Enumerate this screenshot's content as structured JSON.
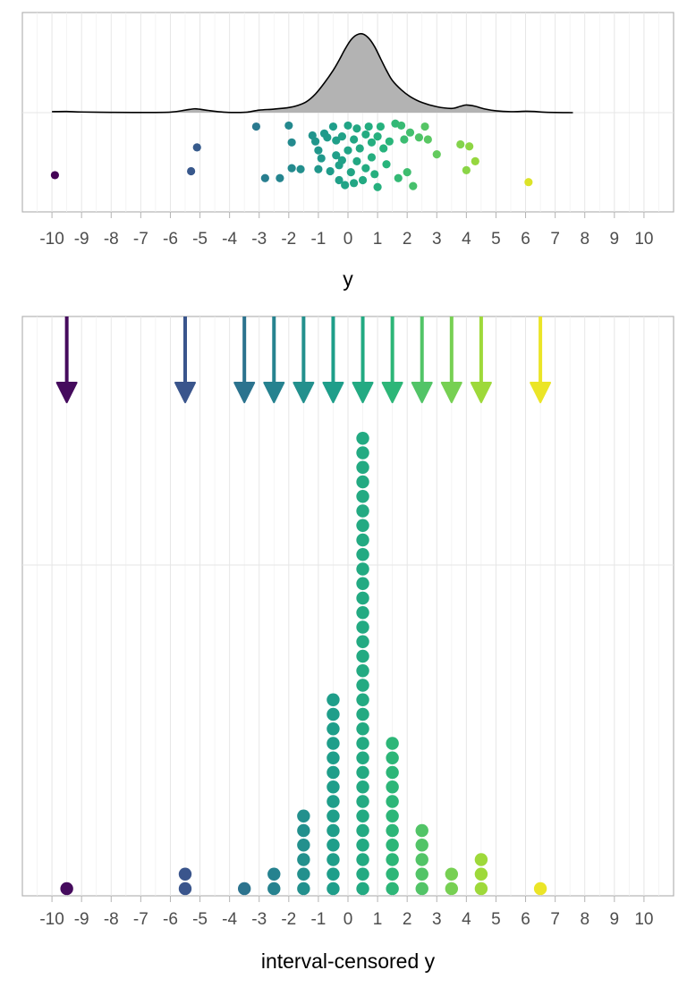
{
  "chart_data": [
    {
      "type": "scatter",
      "subtype": "density-with-jittered-points",
      "xlabel": "y",
      "ylabel": "",
      "xlim": [
        -11,
        11
      ],
      "x_ticks": [
        -10,
        -9,
        -8,
        -7,
        -6,
        -5,
        -4,
        -3,
        -2,
        -1,
        0,
        1,
        2,
        3,
        4,
        5,
        6,
        7,
        8,
        9,
        10
      ],
      "grid": true,
      "color_scale": "viridis",
      "density_curve": {
        "x": [
          -10,
          -9.5,
          -9,
          -8,
          -7,
          -6,
          -5.5,
          -5.2,
          -5,
          -4.7,
          -4.2,
          -3.8,
          -3.4,
          -3,
          -2.5,
          -2,
          -1.7,
          -1.4,
          -1.1,
          -0.8,
          -0.5,
          -0.3,
          -0.1,
          0.1,
          0.3,
          0.5,
          0.7,
          0.9,
          1.1,
          1.3,
          1.5,
          1.8,
          2.1,
          2.5,
          3,
          3.5,
          3.8,
          4,
          4.3,
          4.6,
          5,
          5.5,
          6,
          6.3,
          6.6,
          7,
          7.6
        ],
        "density": [
          0.012,
          0.014,
          0.008,
          0.003,
          0.002,
          0.006,
          0.03,
          0.045,
          0.04,
          0.025,
          0.006,
          0.002,
          0.006,
          0.03,
          0.042,
          0.06,
          0.085,
          0.13,
          0.22,
          0.35,
          0.5,
          0.62,
          0.75,
          0.86,
          0.92,
          0.93,
          0.88,
          0.78,
          0.64,
          0.5,
          0.38,
          0.27,
          0.19,
          0.12,
          0.07,
          0.05,
          0.075,
          0.09,
          0.075,
          0.045,
          0.022,
          0.012,
          0.016,
          0.014,
          0.006,
          0.002,
          0.0
        ]
      },
      "points": [
        {
          "x": -9.9,
          "y": -0.63
        },
        {
          "x": -5.3,
          "y": -0.59
        },
        {
          "x": -5.1,
          "y": -0.35
        },
        {
          "x": -3.1,
          "y": -0.14
        },
        {
          "x": -2.8,
          "y": -0.66
        },
        {
          "x": -2.3,
          "y": -0.66
        },
        {
          "x": -2.0,
          "y": -0.13
        },
        {
          "x": -1.9,
          "y": -0.3
        },
        {
          "x": -1.9,
          "y": -0.56
        },
        {
          "x": -1.6,
          "y": -0.57
        },
        {
          "x": -1.2,
          "y": -0.23
        },
        {
          "x": -1.1,
          "y": -0.29
        },
        {
          "x": -1.0,
          "y": -0.38
        },
        {
          "x": -1.0,
          "y": -0.57
        },
        {
          "x": -0.9,
          "y": -0.46
        },
        {
          "x": -0.8,
          "y": -0.21
        },
        {
          "x": -0.7,
          "y": -0.25
        },
        {
          "x": -0.6,
          "y": -0.59
        },
        {
          "x": -0.5,
          "y": -0.14
        },
        {
          "x": -0.4,
          "y": -0.28
        },
        {
          "x": -0.4,
          "y": -0.43
        },
        {
          "x": -0.3,
          "y": -0.53
        },
        {
          "x": -0.3,
          "y": -0.68
        },
        {
          "x": -0.2,
          "y": -0.24
        },
        {
          "x": -0.2,
          "y": -0.48
        },
        {
          "x": -0.1,
          "y": -0.73
        },
        {
          "x": 0.0,
          "y": -0.13
        },
        {
          "x": 0.0,
          "y": -0.38
        },
        {
          "x": 0.1,
          "y": -0.6
        },
        {
          "x": 0.2,
          "y": -0.27
        },
        {
          "x": 0.2,
          "y": -0.71
        },
        {
          "x": 0.3,
          "y": -0.16
        },
        {
          "x": 0.3,
          "y": -0.49
        },
        {
          "x": 0.4,
          "y": -0.36
        },
        {
          "x": 0.5,
          "y": -0.68
        },
        {
          "x": 0.6,
          "y": -0.22
        },
        {
          "x": 0.6,
          "y": -0.56
        },
        {
          "x": 0.7,
          "y": -0.14
        },
        {
          "x": 0.8,
          "y": -0.45
        },
        {
          "x": 0.8,
          "y": -0.3
        },
        {
          "x": 0.9,
          "y": -0.62
        },
        {
          "x": 1.0,
          "y": -0.24
        },
        {
          "x": 1.0,
          "y": -0.75
        },
        {
          "x": 1.1,
          "y": -0.14
        },
        {
          "x": 1.2,
          "y": -0.36
        },
        {
          "x": 1.3,
          "y": -0.52
        },
        {
          "x": 1.4,
          "y": -0.29
        },
        {
          "x": 1.6,
          "y": -0.11
        },
        {
          "x": 1.7,
          "y": -0.66
        },
        {
          "x": 1.8,
          "y": -0.13
        },
        {
          "x": 1.9,
          "y": -0.27
        },
        {
          "x": 2.0,
          "y": -0.6
        },
        {
          "x": 2.1,
          "y": -0.2
        },
        {
          "x": 2.2,
          "y": -0.74
        },
        {
          "x": 2.4,
          "y": -0.25
        },
        {
          "x": 2.6,
          "y": -0.14
        },
        {
          "x": 2.7,
          "y": -0.27
        },
        {
          "x": 3.0,
          "y": -0.42
        },
        {
          "x": 3.8,
          "y": -0.32
        },
        {
          "x": 4.0,
          "y": -0.58
        },
        {
          "x": 4.1,
          "y": -0.34
        },
        {
          "x": 4.3,
          "y": -0.49
        },
        {
          "x": 6.1,
          "y": -0.7
        }
      ]
    },
    {
      "type": "dotplot",
      "subtype": "interval-censored-dots-with-arrows",
      "xlabel": "interval-censored y",
      "ylabel": "",
      "xlim": [
        -11,
        11
      ],
      "x_ticks": [
        -10,
        -9,
        -8,
        -7,
        -6,
        -5,
        -4,
        -3,
        -2,
        -1,
        0,
        1,
        2,
        3,
        4,
        5,
        6,
        7,
        8,
        9,
        10
      ],
      "grid": true,
      "color_scale": "viridis",
      "bins": [
        {
          "x": -9.5,
          "count": 1
        },
        {
          "x": -5.5,
          "count": 2
        },
        {
          "x": -3.5,
          "count": 1
        },
        {
          "x": -2.5,
          "count": 2
        },
        {
          "x": -1.5,
          "count": 6
        },
        {
          "x": -0.5,
          "count": 14
        },
        {
          "x": 0.5,
          "count": 32
        },
        {
          "x": 1.5,
          "count": 11
        },
        {
          "x": 2.5,
          "count": 5
        },
        {
          "x": 3.5,
          "count": 2
        },
        {
          "x": 4.5,
          "count": 3
        },
        {
          "x": 6.5,
          "count": 1
        }
      ],
      "arrows_at": [
        -9.5,
        -5.5,
        -3.5,
        -2.5,
        -1.5,
        -0.5,
        0.5,
        1.5,
        2.5,
        3.5,
        4.5,
        6.5
      ]
    }
  ]
}
